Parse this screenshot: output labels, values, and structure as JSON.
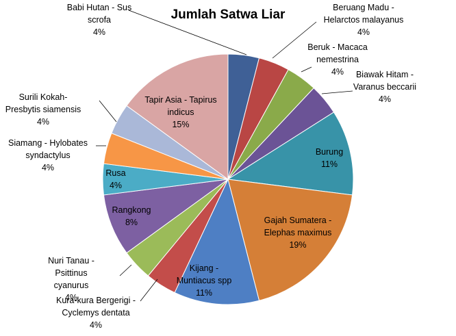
{
  "chart_data": {
    "type": "pie",
    "title": "Jumlah Satwa Liar",
    "start_angle_deg": 0,
    "direction": "clockwise",
    "slices": [
      {
        "label": "Babi Hutan - Sus scrofa",
        "value": 4,
        "value_label": "4%",
        "color": "#3f6096"
      },
      {
        "label": "Beruang Madu - Helarctos malayanus",
        "value": 4,
        "value_label": "4%",
        "color": "#b94644"
      },
      {
        "label": "Beruk - Macaca nemestrina",
        "value": 4,
        "value_label": "4%",
        "color": "#8aaa4a"
      },
      {
        "label": "Biawak Hitam - Varanus beccarii",
        "value": 4,
        "value_label": "4%",
        "color": "#6b5396"
      },
      {
        "label": "Burung",
        "value": 11,
        "value_label": "11%",
        "color": "#3893a8"
      },
      {
        "label": "Gajah Sumatera - Elephas maximus",
        "value": 19,
        "value_label": "19%",
        "color": "#d57f37"
      },
      {
        "label": "Kijang - Muntiacus spp",
        "value": 11,
        "value_label": "11%",
        "color": "#4e7fc4"
      },
      {
        "label": "Kura-kura Bergerigi - Cyclemys dentata",
        "value": 4,
        "value_label": "4%",
        "color": "#c34d4a"
      },
      {
        "label": "Nuri Tanau - Psittinus cyanurus",
        "value": 4,
        "value_label": "4%",
        "color": "#9bbb59"
      },
      {
        "label": "Rangkong",
        "value": 8,
        "value_label": "8%",
        "color": "#7d60a2"
      },
      {
        "label": "Rusa",
        "value": 4,
        "value_label": "4%",
        "color": "#4bacc6"
      },
      {
        "label": "Siamang - Hylobates syndactylus",
        "value": 4,
        "value_label": "4%",
        "color": "#f79646"
      },
      {
        "label": "Surili Kokah- Presbytis siamensis",
        "value": 4,
        "value_label": "4%",
        "color": "#aab8d8"
      },
      {
        "label": "Tapir Asia - Tapirus indicus",
        "value": 15,
        "value_label": "15%",
        "color": "#d9a5a4"
      }
    ]
  }
}
